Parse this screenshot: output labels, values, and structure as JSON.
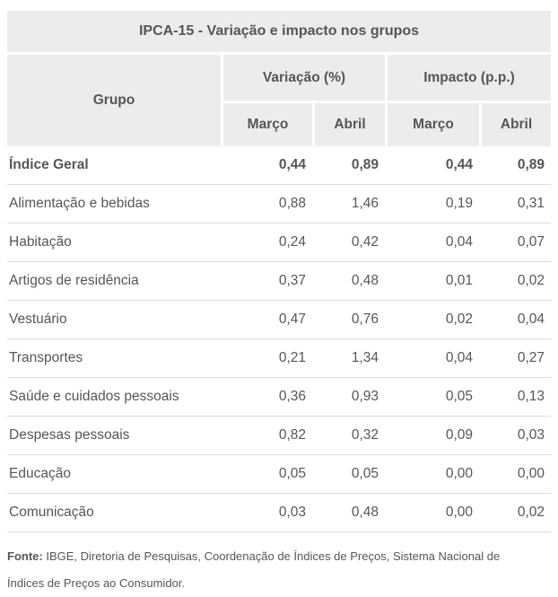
{
  "title": "IPCA-15 - Variação e impacto nos grupos",
  "table": {
    "group_column_header": "Grupo",
    "span_headers": {
      "variacao": "Variação (%)",
      "impacto": "Impacto (p.p.)"
    },
    "sub_headers": {
      "variacao_marco": "Março",
      "variacao_abril": "Abril",
      "impacto_marco": "Março",
      "impacto_abril": "Abril"
    },
    "rows": [
      {
        "label": "Índice Geral",
        "values": [
          "0,44",
          "0,89",
          "0,44",
          "0,89"
        ],
        "bold": true
      },
      {
        "label": "Alimentação e bebidas",
        "values": [
          "0,88",
          "1,46",
          "0,19",
          "0,31"
        ],
        "bold": false
      },
      {
        "label": "Habitação",
        "values": [
          "0,24",
          "0,42",
          "0,04",
          "0,07"
        ],
        "bold": false
      },
      {
        "label": "Artigos de residência",
        "values": [
          "0,37",
          "0,48",
          "0,01",
          "0,02"
        ],
        "bold": false
      },
      {
        "label": "Vestuário",
        "values": [
          "0,47",
          "0,76",
          "0,02",
          "0,04"
        ],
        "bold": false
      },
      {
        "label": "Transportes",
        "values": [
          "0,21",
          "1,34",
          "0,04",
          "0,27"
        ],
        "bold": false
      },
      {
        "label": "Saúde e cuidados pessoais",
        "values": [
          "0,36",
          "0,93",
          "0,05",
          "0,13"
        ],
        "bold": false
      },
      {
        "label": "Despesas pessoais",
        "values": [
          "0,82",
          "0,32",
          "0,09",
          "0,03"
        ],
        "bold": false
      },
      {
        "label": "Educação",
        "values": [
          "0,05",
          "0,05",
          "0,00",
          "0,00"
        ],
        "bold": false
      },
      {
        "label": "Comunicação",
        "values": [
          "0,03",
          "0,48",
          "0,00",
          "0,02"
        ],
        "bold": false
      }
    ]
  },
  "footer": {
    "label": "Fonte:",
    "text": "IBGE, Diretoria de Pesquisas, Coordenação de Índices de Preços, Sistema Nacional de Índices de Preços ao Consumidor."
  },
  "colors": {
    "header_bg": "#ececec",
    "text": "#55565a",
    "row_border": "#dcdcdc",
    "background": "#ffffff"
  },
  "chart_data": {
    "type": "table",
    "title": "IPCA-15 - Variação e impacto nos grupos",
    "columns": [
      "Grupo",
      "Variação (%) Março",
      "Variação (%) Abril",
      "Impacto (p.p.) Março",
      "Impacto (p.p.) Abril"
    ],
    "rows": [
      [
        "Índice Geral",
        0.44,
        0.89,
        0.44,
        0.89
      ],
      [
        "Alimentação e bebidas",
        0.88,
        1.46,
        0.19,
        0.31
      ],
      [
        "Habitação",
        0.24,
        0.42,
        0.04,
        0.07
      ],
      [
        "Artigos de residência",
        0.37,
        0.48,
        0.01,
        0.02
      ],
      [
        "Vestuário",
        0.47,
        0.76,
        0.02,
        0.04
      ],
      [
        "Transportes",
        0.21,
        1.34,
        0.04,
        0.27
      ],
      [
        "Saúde e cuidados pessoais",
        0.36,
        0.93,
        0.05,
        0.13
      ],
      [
        "Despesas pessoais",
        0.82,
        0.32,
        0.09,
        0.03
      ],
      [
        "Educação",
        0.05,
        0.05,
        0.0,
        0.0
      ],
      [
        "Comunicação",
        0.03,
        0.48,
        0.0,
        0.02
      ]
    ],
    "source": "Fonte: IBGE, Diretoria de Pesquisas, Coordenação de Índices de Preços, Sistema Nacional de Índices de Preços ao Consumidor."
  }
}
